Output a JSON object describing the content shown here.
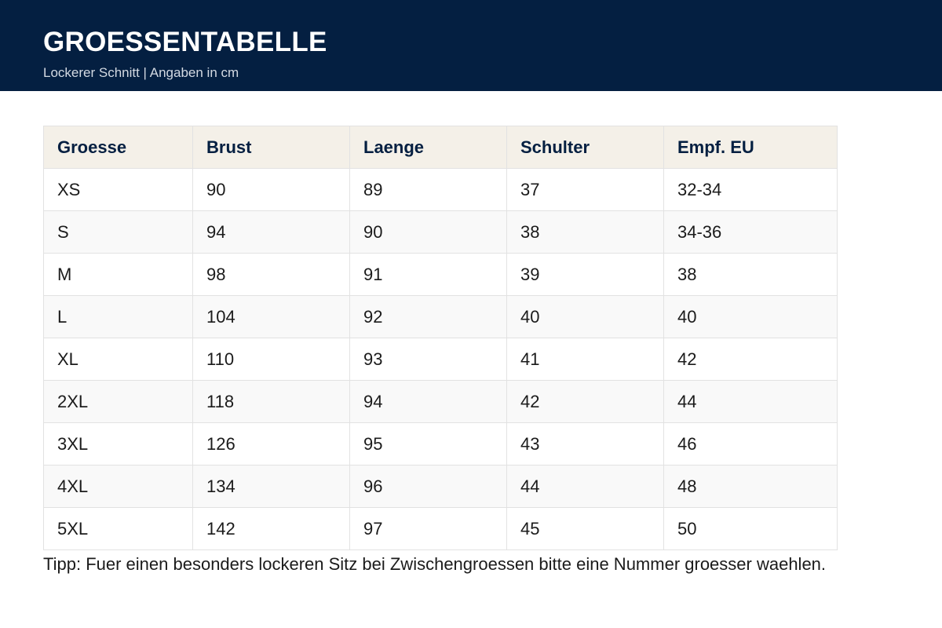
{
  "header": {
    "title": "GROESSENTABELLE",
    "subtitle": "Lockerer Schnitt | Angaben in cm"
  },
  "table": {
    "columns": [
      "Groesse",
      "Brust",
      "Laenge",
      "Schulter",
      "Empf. EU"
    ],
    "rows": [
      [
        "XS",
        "90",
        "89",
        "37",
        "32-34"
      ],
      [
        "S",
        "94",
        "90",
        "38",
        "34-36"
      ],
      [
        "M",
        "98",
        "91",
        "39",
        "38"
      ],
      [
        "L",
        "104",
        "92",
        "40",
        "40"
      ],
      [
        "XL",
        "110",
        "93",
        "41",
        "42"
      ],
      [
        "2XL",
        "118",
        "94",
        "42",
        "44"
      ],
      [
        "3XL",
        "126",
        "95",
        "43",
        "46"
      ],
      [
        "4XL",
        "134",
        "96",
        "44",
        "48"
      ],
      [
        "5XL",
        "142",
        "97",
        "45",
        "50"
      ]
    ]
  },
  "tip": "Tipp: Fuer einen besonders lockeren Sitz bei Zwischengroessen bitte eine Nummer groesser waehlen.",
  "colors": {
    "header_background": "#041f41",
    "table_header_background": "#f4f0e8",
    "table_header_text": "#041f41"
  }
}
